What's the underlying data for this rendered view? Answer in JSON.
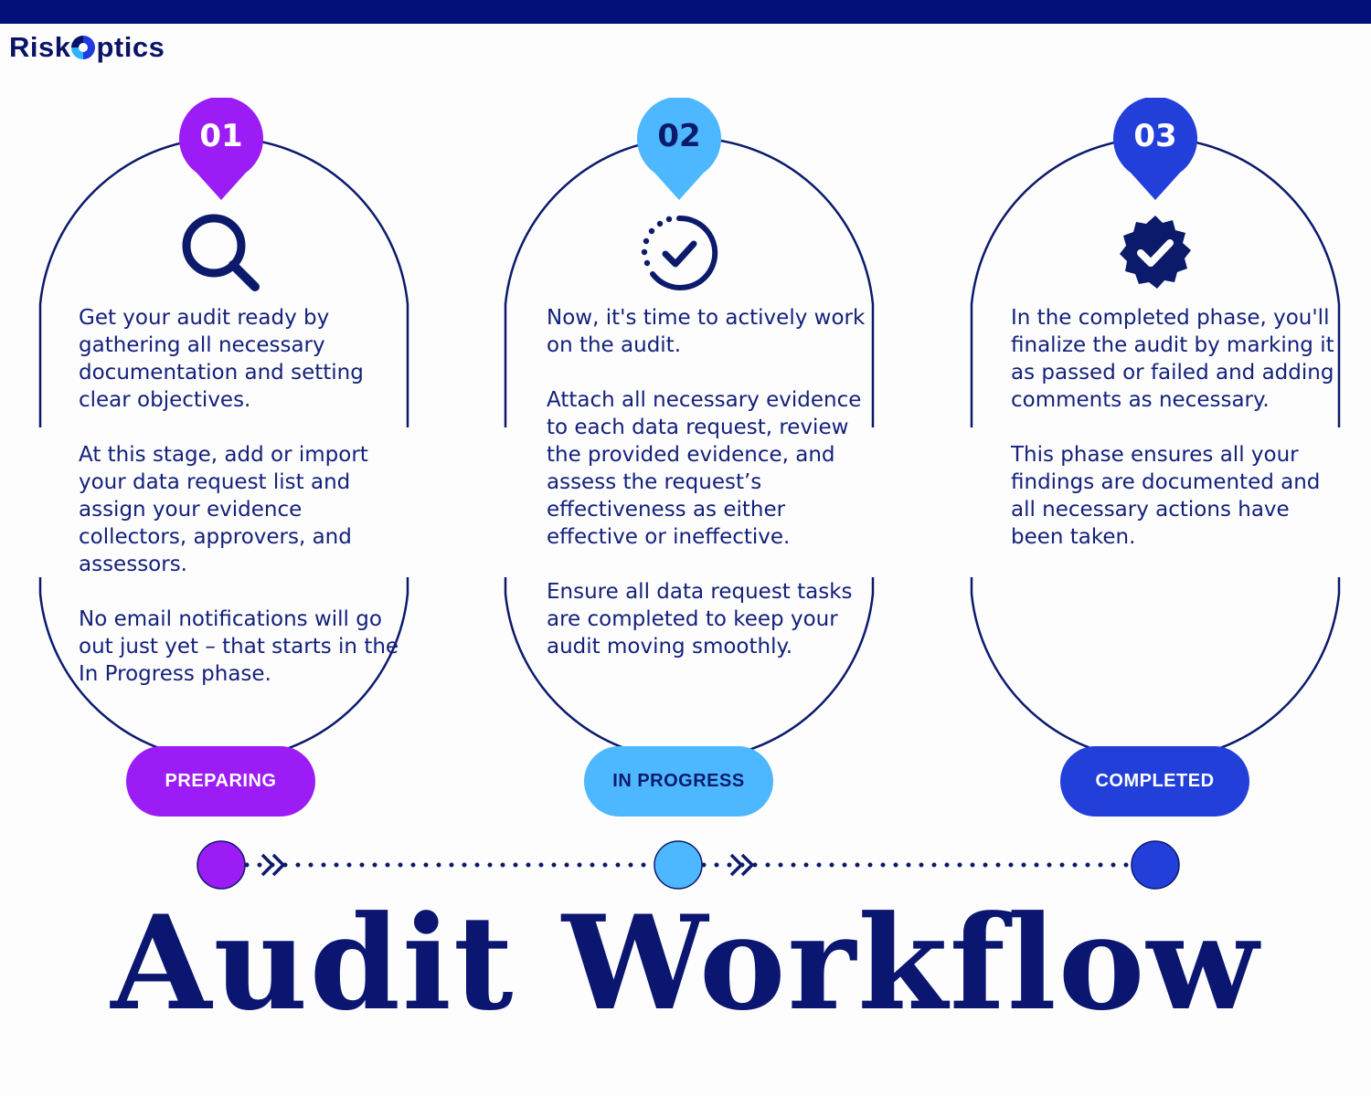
{
  "brand": {
    "name": "RiskOptics",
    "prefix": "Risk",
    "suffix": "ptics"
  },
  "colors": {
    "navy": "#0c1a6b",
    "purple": "#9b1cf5",
    "sky": "#4db8ff",
    "royal": "#233fd9"
  },
  "phases": [
    {
      "number": "01",
      "status": "PREPARING",
      "icon": "magnifier-icon",
      "paragraphs": [
        "Get your audit ready by gathering all necessary documentation and setting clear objectives.",
        "At this stage, add or import your data request list and assign your evidence collectors, approvers, and assessors.",
        "No email notifications will go out just yet – that starts in the In Progress phase."
      ]
    },
    {
      "number": "02",
      "status": "IN PROGRESS",
      "icon": "progress-check-icon",
      "paragraphs": [
        "Now, it's time to actively work on the audit.",
        "Attach all necessary evidence to each data request, review the provided evidence, and assess the request’s effectiveness as either effective or ineffective.",
        "Ensure all data request tasks are completed to keep your audit moving smoothly."
      ]
    },
    {
      "number": "03",
      "status": "COMPLETED",
      "icon": "verified-badge-icon",
      "paragraphs": [
        "In the completed phase, you'll finalize the audit by marking it as passed or failed and adding comments as necessary.",
        "This phase ensures all your findings are documented and all necessary actions have been taken."
      ]
    }
  ],
  "title": "Audit Workflow"
}
